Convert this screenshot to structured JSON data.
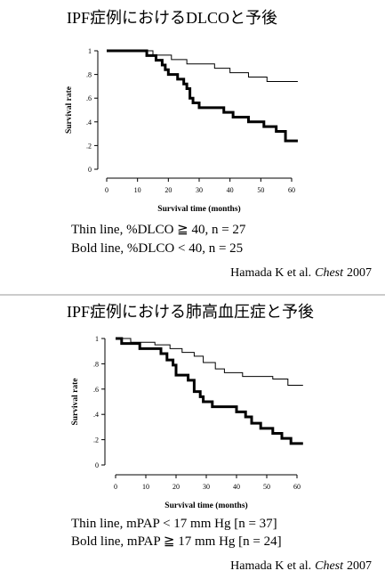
{
  "chart_data": [
    {
      "type": "step",
      "title": "IPF症例におけるDLCOと予後",
      "xlabel": "Survival time (months)",
      "ylabel": "Survival rate",
      "xlim": [
        0,
        60
      ],
      "ylim": [
        0,
        1
      ],
      "xticks": [
        0,
        10,
        20,
        30,
        40,
        50,
        60
      ],
      "yticks": [
        0,
        {
          "value": 0.2,
          "label": ".2"
        },
        {
          "value": 0.4,
          "label": ".4"
        },
        {
          "value": 0.6,
          "label": ".6"
        },
        {
          "value": 0.8,
          "label": ".8"
        },
        1
      ],
      "series": [
        {
          "color": "#000000",
          "width": 1,
          "x": [
            0,
            15,
            21,
            26,
            35,
            40,
            46,
            52,
            62
          ],
          "values": [
            1,
            0.963,
            0.926,
            0.889,
            0.852,
            0.815,
            0.778,
            0.741,
            0.741
          ]
        },
        {
          "color": "#000000",
          "width": 3,
          "x": [
            0,
            13,
            16,
            18,
            19,
            20,
            23,
            25,
            26,
            27,
            28,
            30,
            38,
            41,
            46,
            51,
            55,
            58,
            62
          ],
          "values": [
            1,
            0.96,
            0.92,
            0.88,
            0.84,
            0.8,
            0.76,
            0.72,
            0.68,
            0.6,
            0.56,
            0.52,
            0.48,
            0.44,
            0.4,
            0.36,
            0.32,
            0.24,
            0.24
          ]
        }
      ],
      "notes": [
        "Thin line, %DLCO ≧ 40, n = 27",
        "Bold line, %DLCO < 40, n = 25"
      ],
      "citation": {
        "authors": "Hamada K et al.",
        "journal": "Chest",
        "year": "2007"
      }
    },
    {
      "type": "step",
      "title": "IPF症例における肺高血圧症と予後",
      "xlabel": "Survival time (months)",
      "ylabel": "Survival rate",
      "xlim": [
        0,
        60
      ],
      "ylim": [
        0,
        1
      ],
      "xticks": [
        0,
        10,
        20,
        30,
        40,
        50,
        60
      ],
      "yticks": [
        0,
        {
          "value": 0.2,
          "label": ".2"
        },
        {
          "value": 0.4,
          "label": ".4"
        },
        {
          "value": 0.6,
          "label": ".6"
        },
        {
          "value": 0.8,
          "label": ".8"
        },
        1
      ],
      "series": [
        {
          "color": "#000000",
          "width": 1,
          "x": [
            0,
            5,
            13,
            18,
            22,
            26,
            29,
            33,
            36,
            42,
            52,
            57,
            62
          ],
          "values": [
            1,
            0.97,
            0.95,
            0.92,
            0.89,
            0.86,
            0.81,
            0.76,
            0.73,
            0.7,
            0.68,
            0.63,
            0.63
          ]
        },
        {
          "color": "#000000",
          "width": 3,
          "x": [
            0,
            2,
            8,
            15,
            17,
            19,
            20,
            24,
            26,
            28,
            29,
            32,
            40,
            43,
            45,
            48,
            52,
            55,
            58,
            62
          ],
          "values": [
            1,
            0.96,
            0.92,
            0.88,
            0.83,
            0.79,
            0.71,
            0.67,
            0.58,
            0.54,
            0.5,
            0.46,
            0.42,
            0.38,
            0.33,
            0.29,
            0.25,
            0.21,
            0.17,
            0.17
          ]
        }
      ],
      "notes": [
        "Thin line, mPAP < 17 mm Hg [n = 37]",
        "Bold line, mPAP ≧ 17 mm Hg [n = 24]"
      ],
      "citation": {
        "authors": "Hamada K et al.",
        "journal": "Chest",
        "year": "2007"
      }
    }
  ]
}
